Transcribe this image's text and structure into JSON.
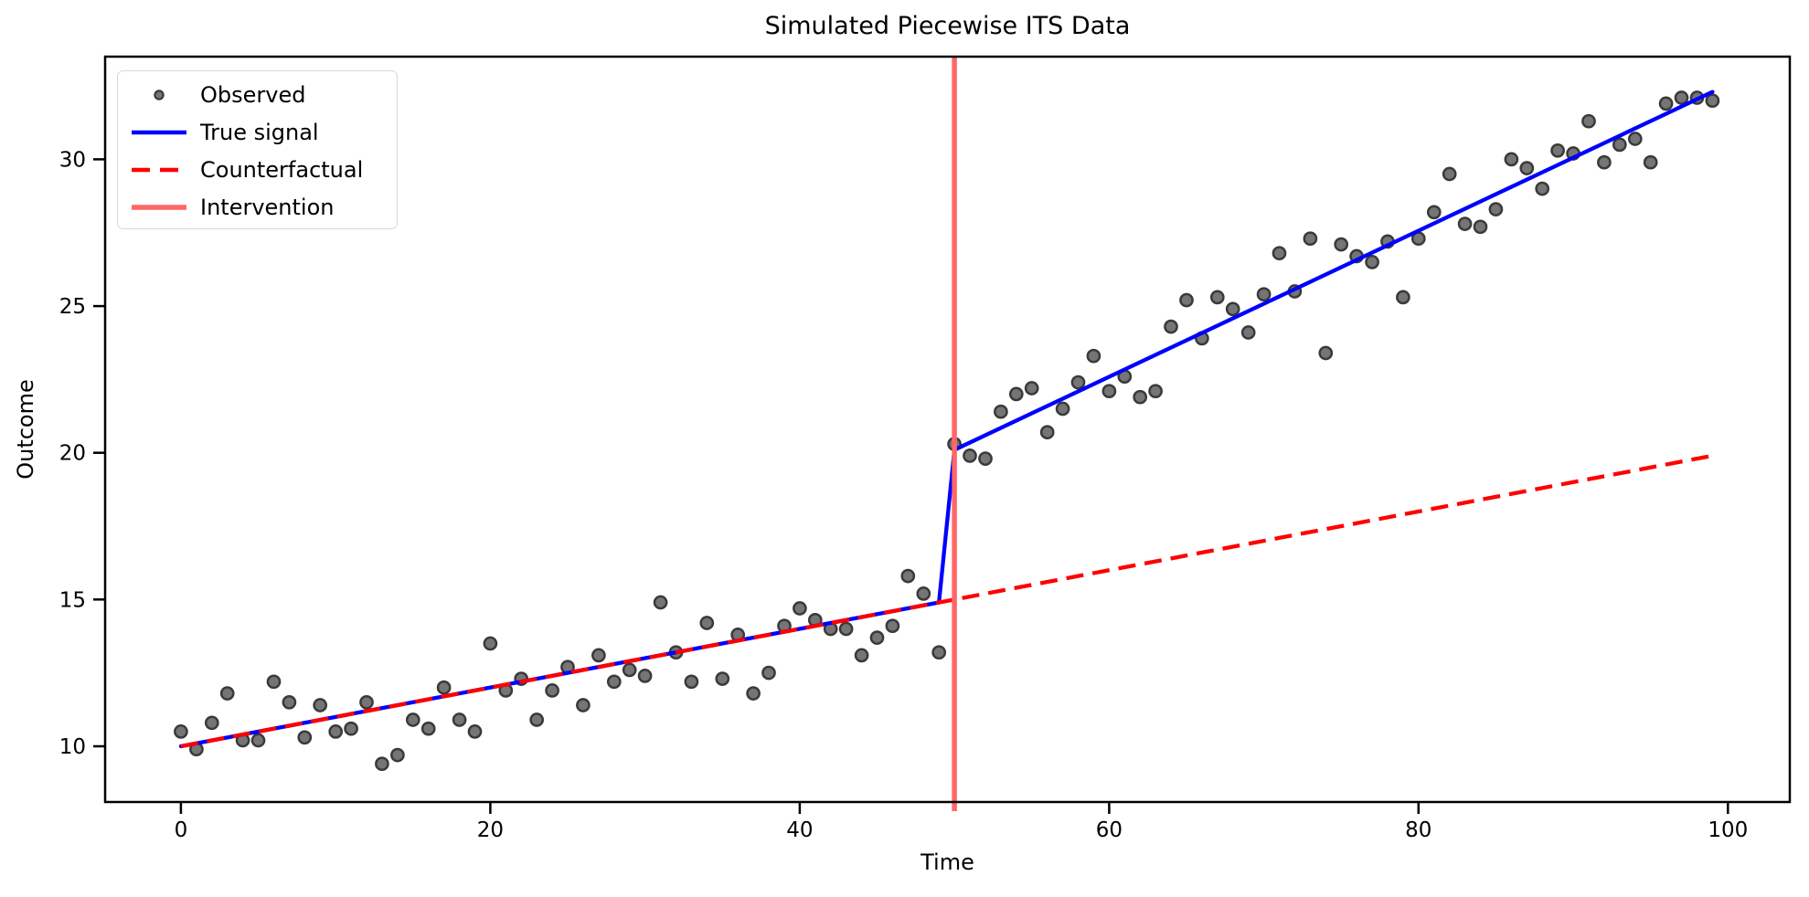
{
  "chart_data": {
    "type": "scatter",
    "title": "Simulated Piecewise ITS Data",
    "xlabel": "Time",
    "ylabel": "Outcome",
    "xlim": [
      -4.9,
      104.0
    ],
    "ylim": [
      8.1,
      33.5
    ],
    "xticks": [
      0,
      20,
      40,
      60,
      80,
      100
    ],
    "yticks": [
      10,
      15,
      20,
      25,
      30
    ],
    "grid": false,
    "legend": {
      "position": "upper left",
      "entries": [
        "Observed",
        "True signal",
        "Counterfactual",
        "Intervention"
      ]
    },
    "colors": {
      "observed_fill": "#757575",
      "observed_edge": "#3a3a3a",
      "true_signal": "#0000ff",
      "counterfactual": "#ff0000",
      "intervention": "#ff6666",
      "axis": "#000000",
      "legend_border": "#d8d8d8"
    },
    "intervention_time": 50,
    "series": [
      {
        "name": "Observed",
        "kind": "scatter",
        "x": [
          0,
          1,
          2,
          3,
          4,
          5,
          6,
          7,
          8,
          9,
          10,
          11,
          12,
          13,
          14,
          15,
          16,
          17,
          18,
          19,
          20,
          21,
          22,
          23,
          24,
          25,
          26,
          27,
          28,
          29,
          30,
          31,
          32,
          33,
          34,
          35,
          36,
          37,
          38,
          39,
          40,
          41,
          42,
          43,
          44,
          45,
          46,
          47,
          48,
          49,
          50,
          51,
          52,
          53,
          54,
          55,
          56,
          57,
          58,
          59,
          60,
          61,
          62,
          63,
          64,
          65,
          66,
          67,
          68,
          69,
          70,
          71,
          72,
          73,
          74,
          75,
          76,
          77,
          78,
          79,
          80,
          81,
          82,
          83,
          84,
          85,
          86,
          87,
          88,
          89,
          90,
          91,
          92,
          93,
          94,
          95,
          96,
          97,
          98,
          99
        ],
        "y": [
          10.5,
          9.9,
          10.8,
          11.8,
          10.2,
          10.2,
          12.2,
          11.5,
          10.3,
          11.4,
          10.5,
          10.6,
          11.5,
          9.4,
          9.7,
          10.9,
          10.6,
          12.0,
          10.9,
          10.5,
          13.5,
          11.9,
          12.3,
          10.9,
          11.9,
          12.7,
          11.4,
          13.1,
          12.2,
          12.6,
          12.4,
          14.9,
          13.2,
          12.2,
          14.2,
          12.3,
          13.8,
          11.8,
          12.5,
          14.1,
          14.7,
          14.3,
          14.0,
          14.0,
          13.1,
          13.7,
          14.1,
          15.8,
          15.2,
          13.2,
          20.3,
          19.9,
          19.8,
          21.4,
          22.0,
          22.2,
          20.7,
          21.5,
          22.4,
          23.3,
          22.1,
          22.6,
          21.9,
          22.1,
          24.3,
          25.2,
          23.9,
          25.3,
          24.9,
          24.1,
          25.4,
          26.8,
          25.5,
          27.3,
          23.4,
          27.1,
          26.7,
          26.5,
          27.2,
          25.3,
          27.3,
          28.2,
          29.5,
          27.8,
          27.7,
          28.3,
          30.0,
          29.7,
          29.0,
          30.3,
          30.2,
          31.3,
          29.9,
          30.5,
          30.7,
          29.9,
          31.9,
          32.1,
          32.1,
          32.0
        ]
      },
      {
        "name": "True signal",
        "kind": "line",
        "x": [
          0,
          49,
          50,
          99
        ],
        "y": [
          10.0,
          14.9,
          20.1,
          32.3
        ]
      },
      {
        "name": "Counterfactual",
        "kind": "dashed-line",
        "x": [
          0,
          99
        ],
        "y": [
          10.0,
          19.9
        ]
      },
      {
        "name": "Intervention",
        "kind": "vline",
        "x": 50
      }
    ]
  }
}
